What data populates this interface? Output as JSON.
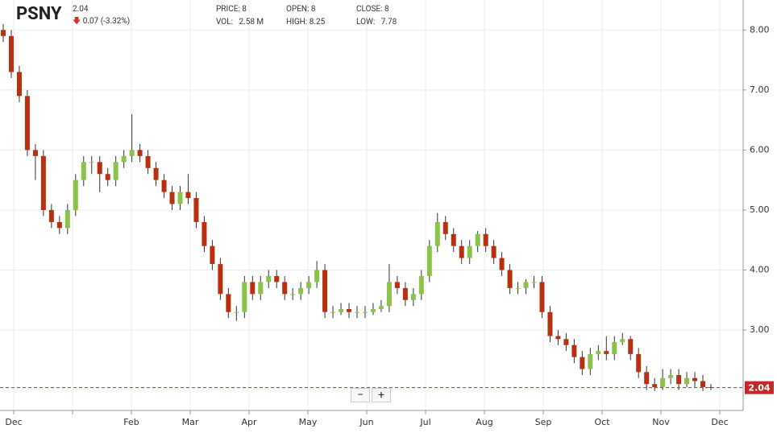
{
  "chart_data": {
    "type": "candlestick",
    "symbol": "PSNY",
    "last_price": 2.04,
    "change": "0.07 (-3.32%)",
    "info": {
      "price_label": "PRICE:",
      "price": "8",
      "open_label": "OPEN:",
      "open": "8",
      "close_label": "CLOSE:",
      "close": "8",
      "vol_label": "VOL:",
      "vol": "2.58 M",
      "high_label": "HIGH:",
      "high": "8.25",
      "low_label": "LOW:",
      "low": "7.78"
    },
    "zoom_out": "−",
    "zoom_in": "+",
    "categories": [
      "Dec",
      null,
      "Feb",
      "Mar",
      "Apr",
      "May",
      "Jun",
      "Jul",
      "Aug",
      "Sep",
      "Oct",
      "Nov",
      "Dec"
    ],
    "ylim": [
      1.66,
      8.5
    ],
    "yticks": [
      {
        "value": 3,
        "label": "3.00"
      },
      {
        "value": 4,
        "label": "4.00"
      },
      {
        "value": 5,
        "label": "5.00"
      },
      {
        "value": 6,
        "label": "6.00"
      },
      {
        "value": 7,
        "label": "7.00"
      },
      {
        "value": 8,
        "label": "8.00"
      }
    ],
    "grid": true,
    "up_color": "#8bc34a",
    "down_color": "#b8300f",
    "open": [
      8.0,
      7.9,
      7.3,
      6.9,
      6.0,
      5.9,
      5.0,
      4.8,
      4.7,
      5.0,
      5.5,
      5.8,
      5.8,
      5.6,
      5.5,
      5.8,
      5.9,
      6.0,
      5.9,
      5.7,
      5.5,
      5.3,
      5.1,
      5.3,
      5.2,
      4.8,
      4.4,
      4.1,
      3.6,
      3.3,
      3.3,
      3.8,
      3.6,
      3.8,
      3.9,
      3.8,
      3.6,
      3.6,
      3.7,
      3.8,
      4.0,
      3.3,
      3.3,
      3.35,
      3.3,
      3.3,
      3.3,
      3.35,
      3.4,
      3.8,
      3.7,
      3.5,
      3.6,
      3.9,
      4.4,
      4.8,
      4.6,
      4.4,
      4.2,
      4.4,
      4.6,
      4.4,
      4.2,
      4.0,
      3.7,
      3.7,
      3.8,
      3.8,
      3.3,
      2.9,
      2.85,
      2.75,
      2.55,
      2.35,
      2.6,
      2.65,
      2.6,
      2.8,
      2.85,
      2.6,
      2.3,
      2.1,
      2.05,
      2.2,
      2.25,
      2.1,
      2.2,
      2.15,
      2.05
    ],
    "high": [
      8.1,
      8.0,
      7.4,
      7.0,
      6.1,
      6.0,
      5.1,
      4.9,
      5.1,
      5.6,
      5.9,
      5.9,
      5.9,
      5.7,
      5.9,
      6.0,
      6.6,
      6.1,
      6.0,
      5.8,
      5.6,
      5.4,
      5.4,
      5.6,
      5.3,
      4.9,
      4.5,
      4.2,
      3.7,
      3.4,
      3.9,
      3.9,
      3.9,
      4.0,
      4.0,
      3.9,
      3.7,
      3.8,
      3.9,
      4.15,
      4.1,
      3.4,
      3.45,
      3.45,
      3.4,
      3.4,
      3.45,
      3.5,
      4.1,
      3.9,
      3.8,
      3.7,
      4.0,
      4.5,
      4.95,
      4.9,
      4.7,
      4.5,
      4.5,
      4.65,
      4.7,
      4.5,
      4.3,
      4.1,
      3.8,
      3.85,
      3.9,
      3.9,
      3.4,
      3.0,
      2.95,
      2.85,
      2.65,
      2.7,
      2.75,
      2.9,
      2.9,
      2.95,
      2.9,
      2.7,
      2.4,
      2.2,
      2.35,
      2.35,
      2.35,
      2.3,
      2.3,
      2.25,
      2.1
    ],
    "low": [
      7.8,
      7.2,
      6.8,
      5.9,
      5.5,
      4.9,
      4.7,
      4.6,
      4.6,
      4.9,
      5.4,
      5.6,
      5.3,
      5.4,
      5.4,
      5.7,
      5.8,
      5.8,
      5.6,
      5.4,
      5.2,
      5.0,
      5.0,
      5.1,
      4.7,
      4.3,
      4.0,
      3.5,
      3.2,
      3.15,
      3.2,
      3.5,
      3.5,
      3.7,
      3.7,
      3.5,
      3.5,
      3.5,
      3.6,
      3.7,
      3.2,
      3.2,
      3.25,
      3.2,
      3.2,
      3.2,
      3.25,
      3.3,
      3.3,
      3.6,
      3.4,
      3.4,
      3.5,
      3.8,
      4.3,
      4.5,
      4.3,
      4.1,
      4.1,
      4.3,
      4.3,
      4.1,
      3.9,
      3.6,
      3.6,
      3.6,
      3.7,
      3.2,
      2.8,
      2.75,
      2.65,
      2.45,
      2.25,
      2.25,
      2.5,
      2.5,
      2.5,
      2.75,
      2.5,
      2.2,
      2.0,
      1.98,
      2.0,
      2.1,
      2.0,
      2.05,
      2.05,
      1.98,
      2.0
    ],
    "close": [
      7.9,
      7.3,
      6.9,
      6.0,
      5.9,
      5.0,
      4.8,
      4.7,
      5.0,
      5.5,
      5.8,
      5.8,
      5.6,
      5.5,
      5.8,
      5.9,
      6.0,
      5.9,
      5.7,
      5.5,
      5.3,
      5.1,
      5.3,
      5.2,
      4.8,
      4.4,
      4.1,
      3.6,
      3.3,
      3.3,
      3.8,
      3.6,
      3.8,
      3.9,
      3.8,
      3.6,
      3.6,
      3.7,
      3.8,
      4.0,
      3.3,
      3.3,
      3.35,
      3.3,
      3.3,
      3.3,
      3.35,
      3.4,
      3.8,
      3.7,
      3.5,
      3.6,
      3.9,
      4.4,
      4.8,
      4.6,
      4.4,
      4.2,
      4.4,
      4.6,
      4.4,
      4.2,
      4.0,
      3.7,
      3.7,
      3.8,
      3.8,
      3.3,
      2.9,
      2.85,
      2.75,
      2.55,
      2.35,
      2.6,
      2.65,
      2.6,
      2.8,
      2.85,
      2.6,
      2.3,
      2.1,
      2.05,
      2.2,
      2.25,
      2.1,
      2.2,
      2.15,
      2.05,
      2.04
    ]
  }
}
